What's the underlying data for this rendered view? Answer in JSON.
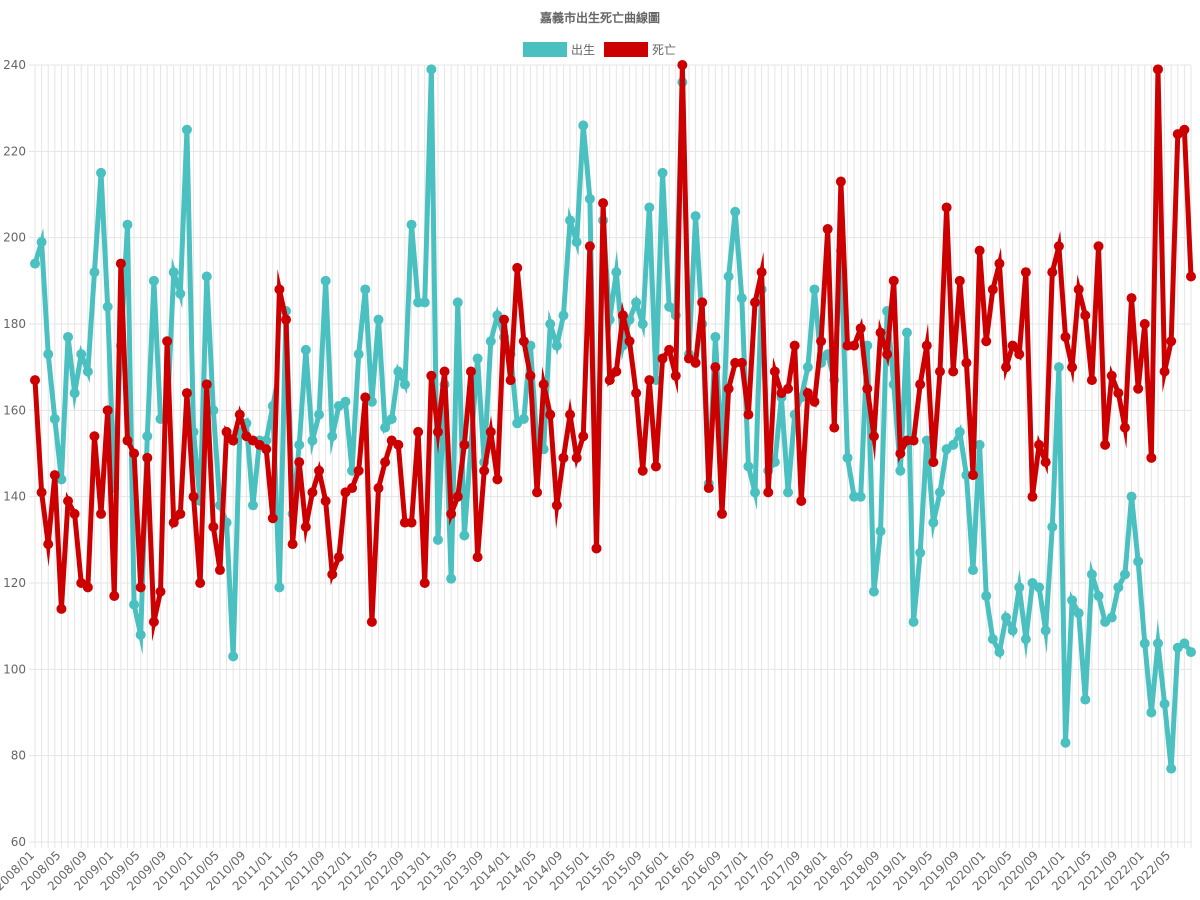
{
  "chart_data": {
    "type": "line",
    "title": "嘉義市出生死亡曲線圖",
    "legend_position": "top-center",
    "grid": true,
    "ylim": [
      60,
      240
    ],
    "y_ticks": [
      60,
      80,
      100,
      120,
      140,
      160,
      180,
      200,
      220,
      240
    ],
    "x_start": "2008/01",
    "x_tick_step_months": 4,
    "x_tick_labels": [
      "2008/01",
      "2008/05",
      "2008/09",
      "2009/01",
      "2009/05",
      "2009/09",
      "2010/01",
      "2010/05",
      "2010/09",
      "2011/01",
      "2011/05",
      "2011/09",
      "2012/01",
      "2012/05",
      "2012/09",
      "2013/01",
      "2013/05",
      "2013/09",
      "2014/01",
      "2014/05",
      "2014/09",
      "2015/01",
      "2015/05",
      "2015/09",
      "2016/01",
      "2016/05",
      "2016/09",
      "2017/01",
      "2017/05",
      "2017/09",
      "2018/01",
      "2018/05",
      "2018/09",
      "2019/01",
      "2019/05",
      "2019/09",
      "2020/01",
      "2020/05",
      "2020/09",
      "2021/01",
      "2021/05",
      "2021/09",
      "2022/01",
      "2022/05"
    ],
    "series": [
      {
        "name": "出生",
        "color": "#4bc0c0",
        "values": [
          194,
          199,
          173,
          158,
          144,
          177,
          164,
          173,
          169,
          192,
          215,
          184,
          142,
          175,
          203,
          115,
          108,
          154,
          190,
          158,
          158,
          192,
          187,
          225,
          155,
          139,
          191,
          160,
          138,
          134,
          103,
          155,
          157,
          138,
          153,
          153,
          161,
          119,
          183,
          136,
          152,
          174,
          153,
          159,
          190,
          154,
          161,
          162,
          146,
          173,
          188,
          162,
          181,
          156,
          158,
          169,
          166,
          203,
          185,
          185,
          239,
          130,
          166,
          121,
          185,
          131,
          152,
          172,
          148,
          176,
          182,
          177,
          173,
          157,
          158,
          175,
          152,
          151,
          180,
          175,
          182,
          204,
          199,
          226,
          209,
          128,
          204,
          181,
          192,
          175,
          181,
          185,
          180,
          207,
          167,
          215,
          184,
          182,
          236,
          173,
          205,
          180,
          143,
          177,
          148,
          191,
          206,
          186,
          147,
          141,
          188,
          146,
          148,
          163,
          141,
          159,
          163,
          170,
          188,
          171,
          173,
          167,
          197,
          149,
          140,
          140,
          175,
          118,
          132,
          183,
          166,
          146,
          178,
          111,
          127,
          153,
          134,
          141,
          151,
          152,
          155,
          145,
          123,
          152,
          117,
          107,
          104,
          112,
          109,
          119,
          107,
          120,
          119,
          109,
          133,
          170,
          83,
          116,
          113,
          93,
          122,
          117,
          111,
          112,
          119,
          122,
          140,
          125,
          106,
          90,
          106,
          92,
          77,
          105,
          106,
          104
        ]
      },
      {
        "name": "死亡",
        "color": "#cc0000",
        "values": [
          167,
          141,
          129,
          145,
          114,
          139,
          136,
          120,
          119,
          154,
          136,
          160,
          117,
          194,
          153,
          150,
          119,
          149,
          111,
          118,
          176,
          134,
          136,
          164,
          140,
          120,
          166,
          133,
          123,
          155,
          153,
          159,
          154,
          153,
          152,
          151,
          135,
          188,
          181,
          129,
          148,
          133,
          141,
          146,
          139,
          122,
          126,
          141,
          142,
          146,
          163,
          111,
          142,
          148,
          153,
          152,
          134,
          134,
          155,
          120,
          168,
          155,
          169,
          136,
          140,
          152,
          169,
          126,
          146,
          155,
          144,
          181,
          167,
          193,
          176,
          168,
          141,
          166,
          159,
          138,
          149,
          159,
          149,
          154,
          198,
          128,
          208,
          167,
          169,
          182,
          176,
          164,
          146,
          167,
          147,
          172,
          174,
          168,
          240,
          172,
          171,
          185,
          142,
          170,
          136,
          165,
          171,
          171,
          159,
          185,
          192,
          141,
          169,
          164,
          165,
          175,
          139,
          164,
          162,
          176,
          202,
          156,
          213,
          175,
          175,
          179,
          165,
          154,
          178,
          173,
          190,
          150,
          153,
          153,
          166,
          175,
          148,
          169,
          207,
          169,
          190,
          171,
          145,
          197,
          176,
          188,
          194,
          170,
          175,
          173,
          192,
          140,
          152,
          148,
          192,
          198,
          177,
          170,
          188,
          182,
          167,
          198,
          152,
          168,
          164,
          156,
          186,
          165,
          180,
          149,
          239,
          169,
          176,
          224,
          225,
          191
        ]
      }
    ]
  }
}
